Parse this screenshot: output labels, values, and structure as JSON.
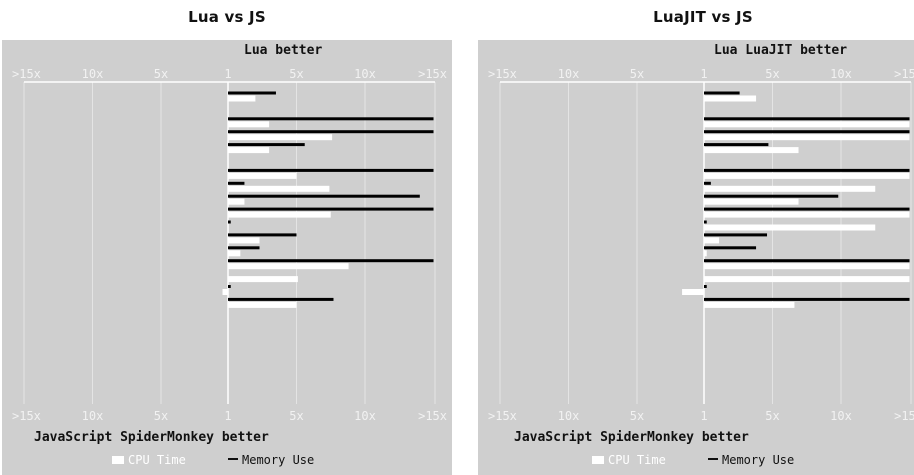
{
  "chart_data": [
    {
      "type": "bar",
      "title": "Lua vs JS",
      "top_label": "Lua better",
      "bottom_label": "JavaScript SpiderMonkey better",
      "tick_labels": [
        ">15x",
        "10x",
        "5x",
        "1",
        "5x",
        "10x",
        ">15x"
      ],
      "legend": [
        "CPU Time",
        "Memory Use"
      ],
      "grid": true,
      "xlim": [
        -15,
        15
      ],
      "series": [
        {
          "name": "CPU Time",
          "values": [
            2,
            null,
            3,
            7.6,
            3,
            null,
            5,
            7.4,
            1.2,
            7.5,
            null,
            2.3,
            0.9,
            8.8,
            5.1,
            -0.4,
            5
          ]
        },
        {
          "name": "Memory Use",
          "values": [
            3.5,
            null,
            16,
            16,
            5.6,
            null,
            16,
            1.2,
            14,
            16,
            0.2,
            5,
            2.3,
            16,
            null,
            0.2,
            7.7
          ]
        }
      ]
    },
    {
      "type": "bar",
      "title": "LuaJIT vs JS",
      "top_label": "Lua LuaJIT better",
      "bottom_label": "JavaScript SpiderMonkey better",
      "tick_labels": [
        ">15x",
        "10x",
        "5x",
        "1",
        "5x",
        "10x",
        ">15x"
      ],
      "legend": [
        "CPU Time",
        "Memory Use"
      ],
      "grid": true,
      "xlim": [
        -15,
        15
      ],
      "series": [
        {
          "name": "CPU Time",
          "values": [
            3.8,
            null,
            16,
            16,
            6.9,
            null,
            16,
            12.5,
            6.9,
            16,
            12.5,
            1.1,
            0.2,
            15,
            15.5,
            -1.6,
            6.6
          ]
        },
        {
          "name": "Memory Use",
          "values": [
            2.6,
            null,
            16,
            16,
            4.7,
            null,
            16,
            0.5,
            9.8,
            16,
            0.2,
            4.6,
            3.8,
            16,
            null,
            0.2,
            16
          ]
        }
      ]
    }
  ]
}
